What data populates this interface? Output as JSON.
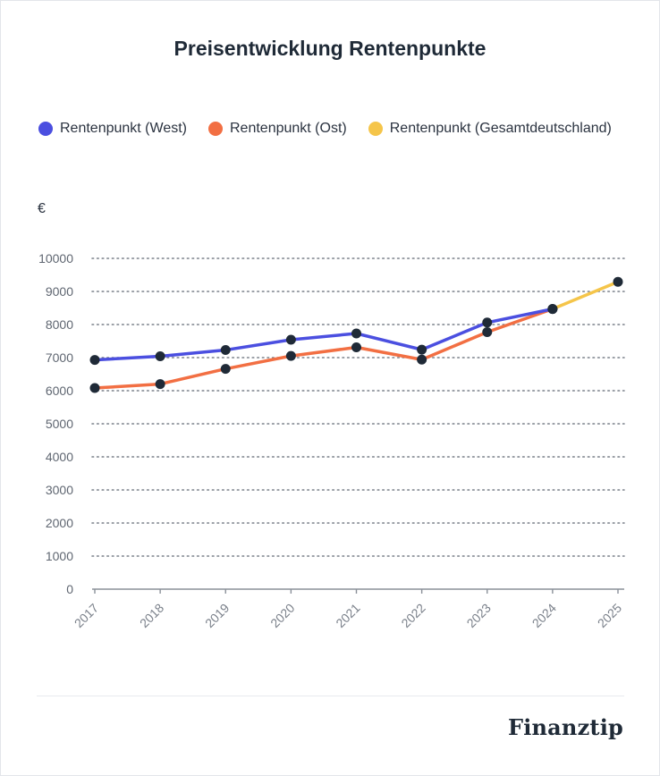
{
  "chart_data": {
    "type": "line",
    "title": "Preisentwicklung Rentenpunkte",
    "ylabel": "€",
    "xlabel": "",
    "categories": [
      "2017",
      "2018",
      "2019",
      "2020",
      "2021",
      "2022",
      "2023",
      "2024",
      "2025"
    ],
    "yticks": [
      "0",
      "1000",
      "2000",
      "3000",
      "4000",
      "5000",
      "6000",
      "7000",
      "8000",
      "9000",
      "10000"
    ],
    "ylim": [
      0,
      10000
    ],
    "grid": true,
    "legend_position": "top",
    "series": [
      {
        "name": "Rentenpunkt (West)",
        "color": "#4b4fe0",
        "values": [
          6930,
          7040,
          7230,
          7540,
          7730,
          7240,
          8060,
          8470,
          null
        ]
      },
      {
        "name": "Rentenpunkt (Ost)",
        "color": "#f26f43",
        "values": [
          6080,
          6200,
          6660,
          7050,
          7310,
          6940,
          7770,
          8470,
          null
        ]
      },
      {
        "name": "Rentenpunkt (Gesamtdeutschland)",
        "color": "#f5c54a",
        "values": [
          null,
          null,
          null,
          null,
          null,
          null,
          null,
          8470,
          9290
        ]
      }
    ],
    "marker_color": "#1f2a37"
  },
  "brand": {
    "logo_text": "Finanztip"
  }
}
